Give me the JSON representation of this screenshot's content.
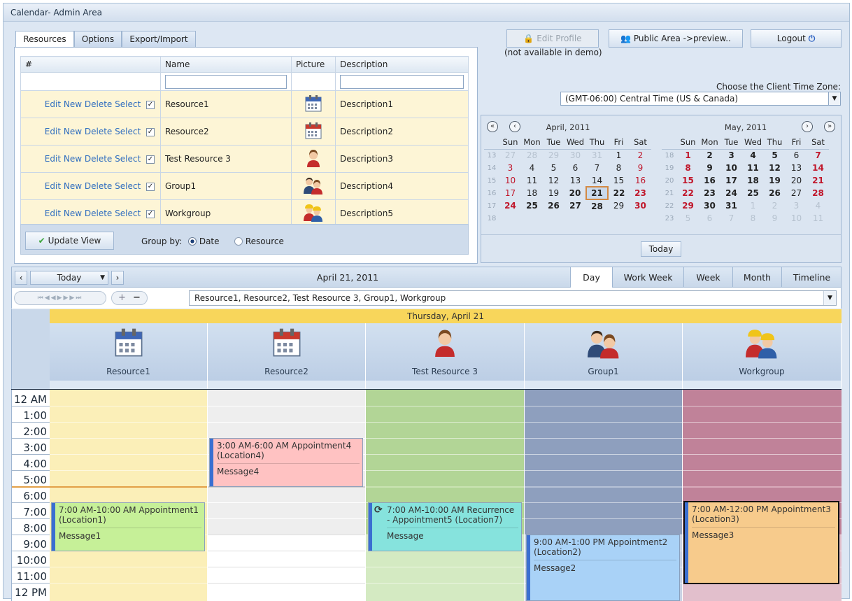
{
  "window": {
    "title": "Calendar- Admin Area"
  },
  "tabs": [
    {
      "label": "Resources"
    },
    {
      "label": "Options"
    },
    {
      "label": "Export/Import"
    }
  ],
  "top_buttons": {
    "edit_profile": "Edit Profile",
    "edit_profile_note": "(not available in demo)",
    "public_area": "Public Area ->preview..",
    "logout": "Logout"
  },
  "timezone": {
    "label": "Choose the Client Time Zone:",
    "value": "(GMT-06:00) Central Time (US & Canada)"
  },
  "resource_table": {
    "headers": [
      "#",
      "Name",
      "Picture",
      "Description"
    ],
    "action_links": [
      "Edit",
      "New",
      "Delete",
      "Select"
    ],
    "rows": [
      {
        "name": "Resource1",
        "description": "Description1",
        "picture_icon": "calendar-icon"
      },
      {
        "name": "Resource2",
        "description": "Description2",
        "picture_icon": "calendar-red-icon"
      },
      {
        "name": "Test Resource 3",
        "description": "Description3",
        "picture_icon": "person-female-icon"
      },
      {
        "name": "Group1",
        "description": "Description4",
        "picture_icon": "people-group-icon"
      },
      {
        "name": "Workgroup",
        "description": "Description5",
        "picture_icon": "workers-icon"
      }
    ],
    "update_view": "Update View",
    "group_by_label": "Group by:",
    "group_by_options": [
      "Date",
      "Resource"
    ],
    "group_by_selected": "Date"
  },
  "mini_calendars": {
    "april": {
      "title": "April, 2011",
      "weekdays": [
        "Sun",
        "Mon",
        "Tue",
        "Wed",
        "Thu",
        "Fri",
        "Sat"
      ],
      "weeks": [
        {
          "wk": "13",
          "days": [
            "27",
            "28",
            "29",
            "30",
            "31",
            "1",
            "2"
          ]
        },
        {
          "wk": "14",
          "days": [
            "3",
            "4",
            "5",
            "6",
            "7",
            "8",
            "9"
          ]
        },
        {
          "wk": "15",
          "days": [
            "10",
            "11",
            "12",
            "13",
            "14",
            "15",
            "16"
          ]
        },
        {
          "wk": "16",
          "days": [
            "17",
            "18",
            "19",
            "20",
            "21",
            "22",
            "23"
          ]
        },
        {
          "wk": "17",
          "days": [
            "24",
            "25",
            "26",
            "27",
            "28",
            "29",
            "30"
          ]
        },
        {
          "wk": "18",
          "days": [
            "",
            "",
            "",
            "",
            "",
            "",
            ""
          ]
        }
      ]
    },
    "may": {
      "title": "May, 2011",
      "weekdays": [
        "Sun",
        "Mon",
        "Tue",
        "Wed",
        "Thu",
        "Fri",
        "Sat"
      ],
      "weeks": [
        {
          "wk": "18",
          "days": [
            "1",
            "2",
            "3",
            "4",
            "5",
            "6",
            "7"
          ]
        },
        {
          "wk": "19",
          "days": [
            "8",
            "9",
            "10",
            "11",
            "12",
            "13",
            "14"
          ]
        },
        {
          "wk": "20",
          "days": [
            "15",
            "16",
            "17",
            "18",
            "19",
            "20",
            "21"
          ]
        },
        {
          "wk": "21",
          "days": [
            "22",
            "23",
            "24",
            "25",
            "26",
            "27",
            "28"
          ]
        },
        {
          "wk": "22",
          "days": [
            "29",
            "30",
            "31",
            "1",
            "2",
            "3",
            "4"
          ]
        },
        {
          "wk": "23",
          "days": [
            "5",
            "6",
            "7",
            "8",
            "9",
            "10",
            "11"
          ]
        }
      ]
    },
    "today_button": "Today",
    "selected_day": "21"
  },
  "scheduler": {
    "today_dropdown": "Today",
    "current_date": "April 21, 2011",
    "views": [
      "Day",
      "Work Week",
      "Week",
      "Month",
      "Timeline"
    ],
    "active_view": "Day",
    "resource_filter": "Resource1, Resource2, Test Resource 3, Group1, Workgroup",
    "day_header": "Thursday, April 21",
    "resources": [
      {
        "name": "Resource1",
        "icon": "calendar-icon",
        "color": "#fbefb8"
      },
      {
        "name": "Resource2",
        "icon": "calendar-red-icon",
        "color": "#eeeeee"
      },
      {
        "name": "Test Resource 3",
        "icon": "person-female-icon",
        "color": "#b2d596"
      },
      {
        "name": "Group1",
        "icon": "people-group-icon",
        "color": "#8e9fbe"
      },
      {
        "name": "Workgroup",
        "icon": "workers-icon",
        "color": "#c08299"
      }
    ],
    "time_labels": [
      "12 AM",
      "1:00",
      "2:00",
      "3:00",
      "4:00",
      "5:00",
      "6:00",
      "7:00",
      "8:00",
      "9:00",
      "10:00",
      "11:00",
      "12 PM"
    ],
    "appointments": [
      {
        "title": "7:00 AM-10:00 AM Appointment1 (Location1)",
        "message": "Message1",
        "color": "#c6f098"
      },
      {
        "title": "3:00 AM-6:00 AM Appointment4 (Location4)",
        "message": "Message4",
        "color": "#ffc2c2"
      },
      {
        "title": "7:00 AM-10:00 AM Recurrence - Appointment5 (Location7)",
        "message": "Message",
        "color": "#86e3dd"
      },
      {
        "title": "9:00 AM-1:00 PM Appointment2 (Location2)",
        "message": "Message2",
        "color": "#a9d2f7"
      },
      {
        "title": "7:00 AM-12:00 PM Appointment3 (Location3)",
        "message": "Message3",
        "color": "#f7cb8c"
      }
    ]
  }
}
